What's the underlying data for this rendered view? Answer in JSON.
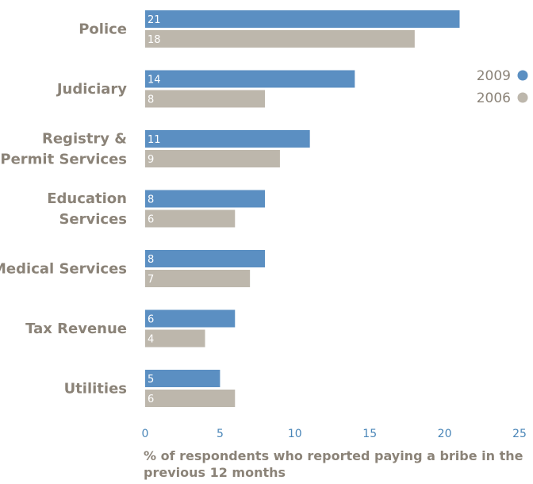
{
  "chart_data": {
    "type": "bar",
    "orientation": "horizontal",
    "categories": [
      [
        "Police"
      ],
      [
        "Judiciary"
      ],
      [
        "Registry &",
        "Permit Services"
      ],
      [
        "Education",
        "Services"
      ],
      [
        "Medical Services"
      ],
      [
        "Tax Revenue"
      ],
      [
        "Utilities"
      ]
    ],
    "series": [
      {
        "name": "2009",
        "color": "#5b8fc2",
        "values": [
          21,
          14,
          11,
          8,
          8,
          6,
          5
        ]
      },
      {
        "name": "2006",
        "color": "#bdb7ac",
        "values": [
          18,
          8,
          9,
          6,
          7,
          4,
          6
        ]
      }
    ],
    "xlabel": [
      "% of respondents who reported paying a bribe in the",
      "previous 12 months"
    ],
    "xlim": [
      0,
      25
    ],
    "xticks": [
      0,
      5,
      10,
      15,
      20,
      25
    ],
    "legend_position": "top-right",
    "colors": {
      "label_text": "#8b8378",
      "tick_text": "#4a86b8"
    }
  }
}
